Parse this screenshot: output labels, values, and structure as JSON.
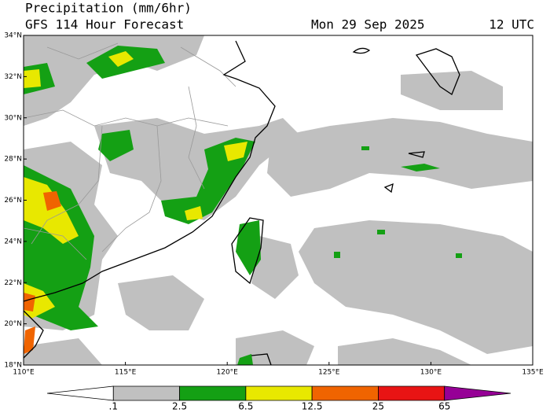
{
  "header": {
    "title": "Precipitation (mm/6hr)",
    "subtitle": "GFS 114 Hour Forecast",
    "date": "Mon 29 Sep 2025",
    "time": "12 UTC"
  },
  "map": {
    "lat_labels": [
      "34°N",
      "32°N",
      "30°N",
      "28°N",
      "26°N",
      "24°N",
      "22°N",
      "20°N",
      "18°N"
    ],
    "lon_labels": [
      "110°E",
      "115°E",
      "120°E",
      "125°E",
      "130°E",
      "135°E"
    ]
  },
  "colorbar": {
    "colors": [
      "#ffffff",
      "#c0c0c0",
      "#14a014",
      "#e8e800",
      "#f06400",
      "#e81414",
      "#960096"
    ],
    "labels": [
      ".1",
      "2.5",
      "6.5",
      "12.5",
      "25",
      "65"
    ]
  }
}
